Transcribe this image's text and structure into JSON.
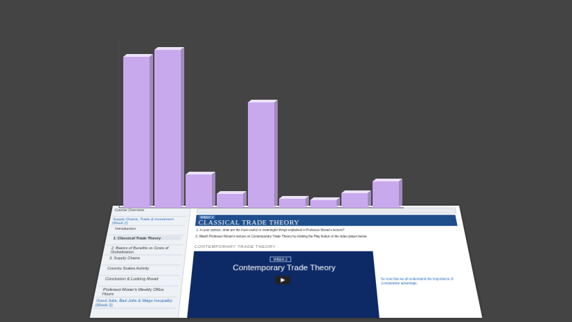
{
  "chart_data": {
    "type": "bar",
    "categories": [
      null,
      null,
      null,
      null,
      null,
      null,
      null,
      null,
      null
    ],
    "values": [
      218,
      228,
      48,
      20,
      152,
      13,
      11,
      21,
      38
    ],
    "color": "#c9a9ee",
    "ylim": [
      0,
      240
    ],
    "tick_labels": false,
    "grid": false
  },
  "screenshot": {
    "sidebar": [
      "Course Overview",
      "Supply Chains, Trade & Investment (Week 2)",
      "Introduction",
      "1. Classical Trade Theory",
      "2. Basics of Benefits vs Costs of Globalization",
      "3. Supply Chains",
      "Country Scales Activity",
      "Conclusion & Looking Ahead",
      "Professor Moran's Weekly Office Hours",
      "Good Jobs, Bad Jobs & Wage Inequality (Week 3)"
    ],
    "week": "WEEK 2",
    "banner": "CLASSICAL TRADE THEORY",
    "questions": [
      "1. In your opinion, what are the most useful or meaningful things explained in Professor Moran's lecture?",
      "2. Watch Professor Moran's lecture on Contemporary Trade Theory by clicking the Play button of the video player below."
    ],
    "section": "CONTEMPORARY TRADE THEORY",
    "video": {
      "week": "WEEK 2",
      "title": "Contemporary Trade Theory"
    },
    "side_note": "So now that we all understand the importance of comparative advantage,"
  }
}
